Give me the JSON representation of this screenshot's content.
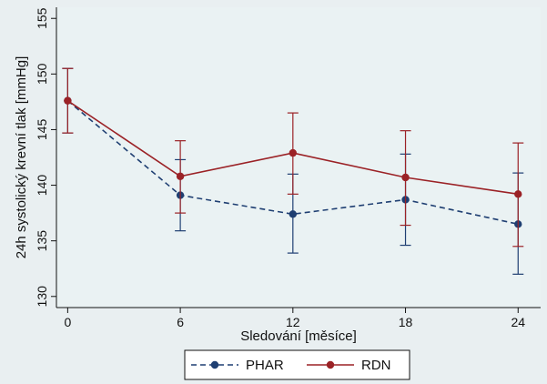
{
  "chart_data": {
    "type": "line",
    "title": "",
    "xlabel": "Sledování [měsíce]",
    "ylabel": "24h systolický krevní tlak [mmHg]",
    "x": [
      0,
      6,
      12,
      18,
      24
    ],
    "xticks": [
      "0",
      "6",
      "12",
      "18",
      "24"
    ],
    "yticks": [
      "130",
      "135",
      "140",
      "145",
      "150",
      "155"
    ],
    "xlim": [
      -0.6,
      25.2
    ],
    "ylim": [
      129,
      156
    ],
    "grid": false,
    "legend_position": "bottom",
    "series": [
      {
        "name": "PHAR",
        "color": "#1f3f72",
        "line_style": "dashed",
        "values": [
          147.6,
          139.1,
          137.4,
          138.7,
          136.5
        ],
        "ci_low": [
          144.7,
          135.9,
          133.9,
          134.6,
          132.0
        ],
        "ci_high": [
          150.5,
          142.3,
          141.0,
          142.8,
          141.1
        ]
      },
      {
        "name": "RDN",
        "color": "#9b2226",
        "line_style": "solid",
        "values": [
          147.6,
          140.8,
          142.9,
          140.7,
          139.2
        ],
        "ci_low": [
          144.7,
          137.5,
          139.2,
          136.4,
          134.5
        ],
        "ci_high": [
          150.5,
          144.0,
          146.5,
          144.9,
          143.8
        ]
      }
    ]
  }
}
